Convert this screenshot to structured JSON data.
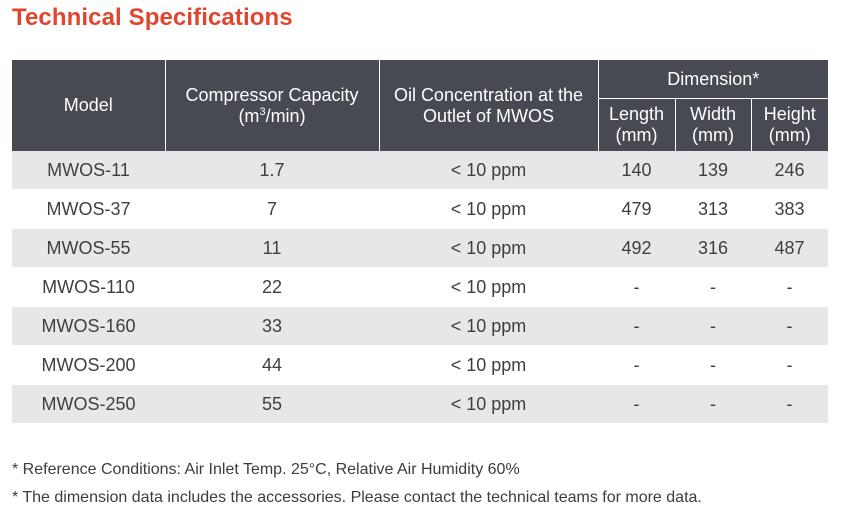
{
  "title": "Technical Specifications",
  "table": {
    "headers": {
      "model": "Model",
      "capacity_text": "Compressor Capacity",
      "capacity_unit_prefix": "(m",
      "capacity_unit_sup": "3",
      "capacity_unit_suffix": "/min)",
      "oil": "Oil Concentration at the Outlet of MWOS",
      "dimension": "Dimension*",
      "length": "Length (mm)",
      "width": "Width (mm)",
      "height": "Height (mm)"
    },
    "rows": [
      {
        "model": "MWOS-11",
        "capacity": "1.7",
        "oil": "< 10 ppm",
        "length": "140",
        "width": "139",
        "height": "246"
      },
      {
        "model": "MWOS-37",
        "capacity": "7",
        "oil": "< 10 ppm",
        "length": "479",
        "width": "313",
        "height": "383"
      },
      {
        "model": "MWOS-55",
        "capacity": "11",
        "oil": "< 10 ppm",
        "length": "492",
        "width": "316",
        "height": "487"
      },
      {
        "model": "MWOS-110",
        "capacity": "22",
        "oil": "< 10 ppm",
        "length": "-",
        "width": "-",
        "height": "-"
      },
      {
        "model": "MWOS-160",
        "capacity": "33",
        "oil": "< 10 ppm",
        "length": "-",
        "width": "-",
        "height": "-"
      },
      {
        "model": "MWOS-200",
        "capacity": "44",
        "oil": "< 10 ppm",
        "length": "-",
        "width": "-",
        "height": "-"
      },
      {
        "model": "MWOS-250",
        "capacity": "55",
        "oil": "< 10 ppm",
        "length": "-",
        "width": "-",
        "height": "-"
      }
    ]
  },
  "notes": [
    "* Reference Conditions: Air Inlet Temp. 25°C, Relative Air Humidity 60%",
    "* The dimension data includes the accessories. Please contact the technical teams for more data."
  ],
  "colors": {
    "title": "#e1452f",
    "header_bg": "#474a52",
    "row_shade": "#e6e7e8"
  }
}
